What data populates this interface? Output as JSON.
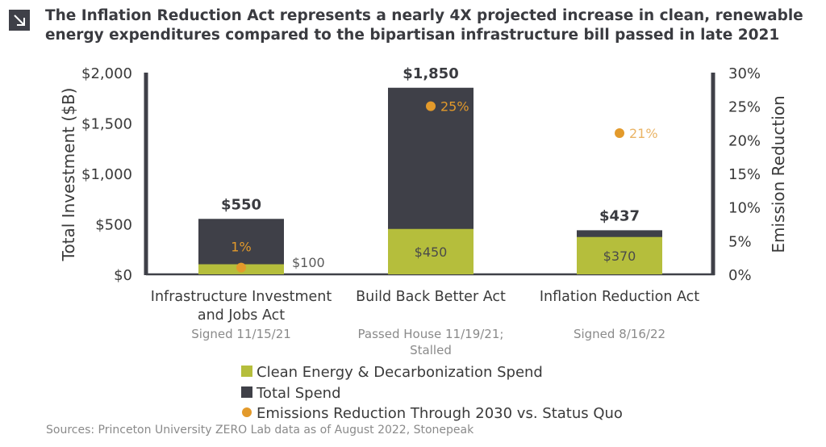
{
  "header": {
    "icon": "arrow-down-right-icon",
    "title": "The Inflation Reduction Act represents a nearly 4X projected increase in clean, renewable energy expenditures compared to the bipartisan infrastructure bill passed in late 2021"
  },
  "chart_data": {
    "type": "bar",
    "stacked": true,
    "categories": [
      "Infrastructure Investment and Jobs Act",
      "Build Back Better Act",
      "Inflation Reduction Act"
    ],
    "category_lines": [
      [
        "Infrastructure Investment",
        "and Jobs Act"
      ],
      [
        "Build Back Better Act"
      ],
      [
        "Inflation Reduction Act"
      ]
    ],
    "category_notes": [
      [
        "Signed 11/15/21"
      ],
      [
        "Passed House 11/19/21;",
        "Stalled"
      ],
      [
        "Signed 8/16/22"
      ]
    ],
    "series": [
      {
        "name": "Clean Energy & Decarbonization Spend",
        "values": [
          100,
          450,
          370
        ],
        "labels": [
          "$100",
          "$450",
          "$370"
        ],
        "color": "#b5be3c"
      },
      {
        "name": "Total Spend",
        "values": [
          550,
          1850,
          437
        ],
        "labels": [
          "$550",
          "$1,850",
          "$437"
        ],
        "color": "#3f4048"
      },
      {
        "name": "Emissions Reduction Through 2030 vs. Status Quo",
        "axis": "right",
        "values": [
          1,
          25,
          21
        ],
        "labels": [
          "1%",
          "25%",
          "21%"
        ],
        "color": "#e39a2b"
      }
    ],
    "ylabel": "Total Investment ($B)",
    "ylim": [
      0,
      2000
    ],
    "yticks": [
      0,
      500,
      1000,
      1500,
      2000
    ],
    "ytick_labels": [
      "$0",
      "$500",
      "$1,000",
      "$1,500",
      "$2,000"
    ],
    "y2label": "Emission Reduction",
    "y2lim": [
      0,
      30
    ],
    "y2ticks": [
      0,
      5,
      10,
      15,
      20,
      25,
      30
    ],
    "y2tick_labels": [
      "0%",
      "5%",
      "10%",
      "15%",
      "20%",
      "25%",
      "30%"
    ],
    "grid": false,
    "legend_position": "bottom"
  },
  "source": "Sources: Princeton University ZERO Lab data as of August 2022, Stonepeak"
}
